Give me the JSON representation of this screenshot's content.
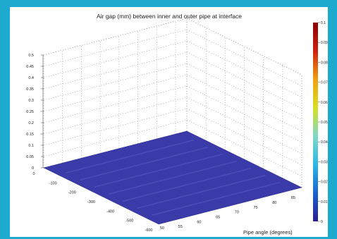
{
  "chart_data": {
    "type": "surface",
    "title": "Air gap (mm) between inner and outer pipe at interface",
    "xlabel": "Pipe angle (degrees)",
    "ylabel": "",
    "zlabel": "",
    "x_ticks": [
      "55",
      "60",
      "65",
      "70",
      "75",
      "80",
      "85"
    ],
    "y_ticks": [
      "0",
      "-100",
      "-200",
      "-300",
      "-400",
      "-500",
      "-600"
    ],
    "z_ticks": [
      "0",
      "0.05",
      "0.1",
      "0.15",
      "0.2",
      "0.25",
      "0.3",
      "0.35",
      "0.4",
      "0.45",
      "0.5"
    ],
    "xlim": [
      50,
      88
    ],
    "ylim": [
      -600,
      0
    ],
    "zlim": [
      0,
      0.5
    ],
    "colorbar": {
      "ticks": [
        "0",
        "0.01",
        "0.02",
        "0.03",
        "0.04",
        "0.05",
        "0.06",
        "0.07",
        "0.08",
        "0.09",
        "0.1"
      ],
      "range": [
        0,
        0.1
      ],
      "colormap": [
        "#2a1e8f",
        "#1a64d0",
        "#2bb8e6",
        "#7fd8c8",
        "#d8e020",
        "#f0a010",
        "#d02010",
        "#8a0000"
      ]
    },
    "surface": {
      "base_color": "#3a3aa8",
      "stripe_color": "#5a58c0",
      "approx_value_max": 0.02,
      "grid_visible": true
    },
    "x_label_bottom": "50"
  }
}
